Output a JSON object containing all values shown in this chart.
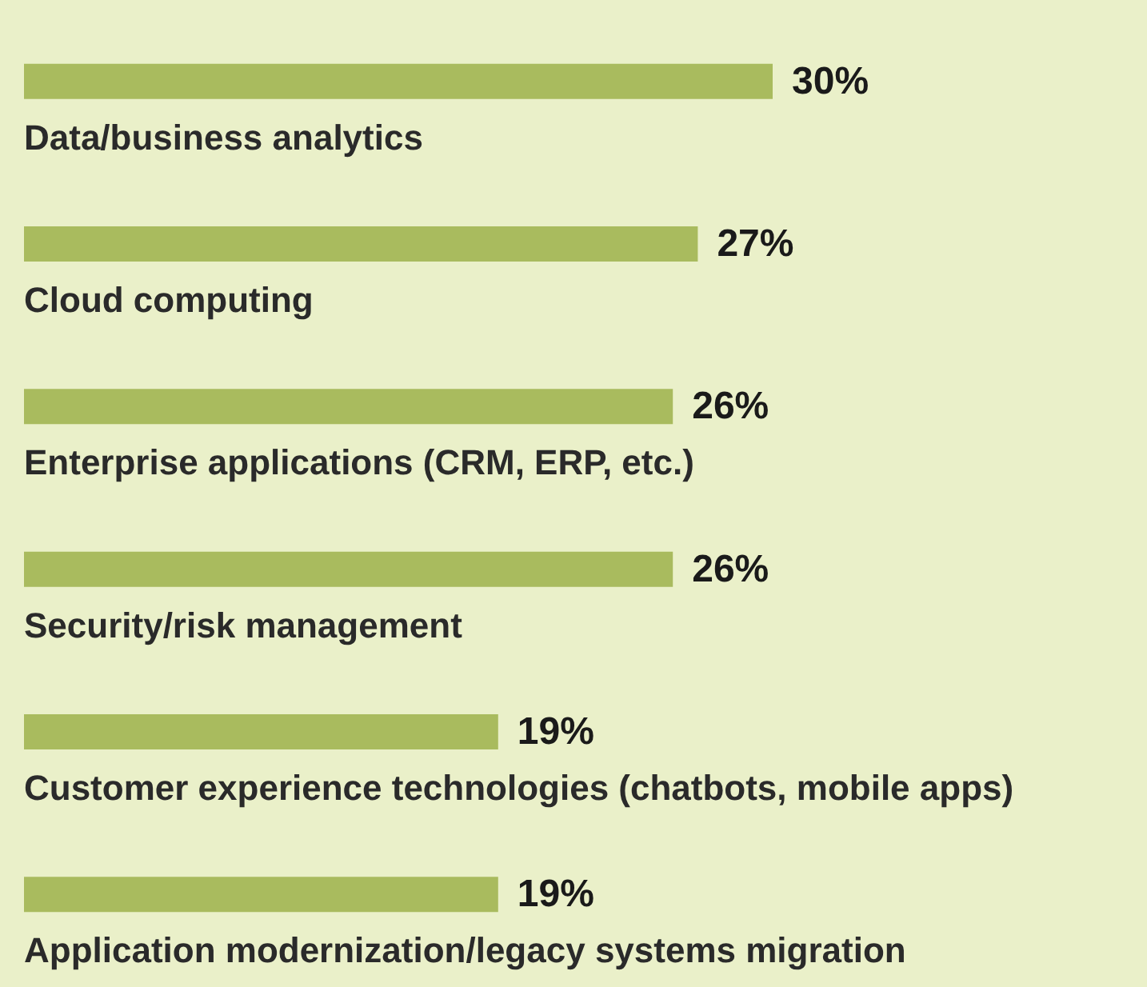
{
  "chart_data": {
    "type": "bar",
    "orientation": "horizontal",
    "categories": [
      "Data/business analytics",
      "Cloud computing",
      "Enterprise applications (CRM, ERP, etc.)",
      "Security/risk management",
      "Customer experience technologies (chatbots, mobile apps)",
      "Application modernization/legacy systems migration"
    ],
    "values": [
      30,
      27,
      26,
      26,
      19,
      19
    ],
    "value_labels": [
      "30%",
      "27%",
      "26%",
      "26%",
      "19%",
      "19%"
    ],
    "color": "#a9bb5e"
  }
}
